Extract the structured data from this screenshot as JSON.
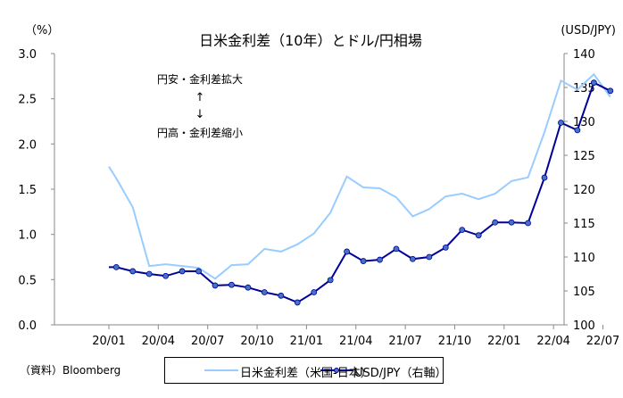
{
  "chart_data": {
    "type": "line",
    "title": "日米金利差（10年）とドル/円相場",
    "left_unit": "（%）",
    "right_unit": "(USD/JPY)",
    "source": "（資料）Bloomberg",
    "annotation_up": "円安・金利差拡大",
    "annotation_down": "円高・金利差縮小",
    "arrow_up": "↑",
    "arrow_down": "↓",
    "x_unit": "months since 2020/01",
    "x_ticks": [
      {
        "x": 0,
        "label": "20/01"
      },
      {
        "x": 3,
        "label": "20/04"
      },
      {
        "x": 6,
        "label": "20/07"
      },
      {
        "x": 9,
        "label": "20/10"
      },
      {
        "x": 12,
        "label": "21/01"
      },
      {
        "x": 15,
        "label": "21/04"
      },
      {
        "x": 18,
        "label": "21/07"
      },
      {
        "x": 21,
        "label": "21/10"
      },
      {
        "x": 24,
        "label": "22/01"
      },
      {
        "x": 27,
        "label": "22/04"
      },
      {
        "x": 30,
        "label": "22/07"
      }
    ],
    "xlim": [
      0,
      31.1
    ],
    "ylim_left": [
      0,
      3.0
    ],
    "yticks_left": [
      "0.0",
      "0.5",
      "1.0",
      "1.5",
      "2.0",
      "2.5",
      "3.0"
    ],
    "ylim_right": [
      100,
      140
    ],
    "yticks_right": [
      "100",
      "105",
      "110",
      "115",
      "120",
      "125",
      "130",
      "135",
      "140"
    ],
    "series": [
      {
        "name": "日米金利差（米国-日本）",
        "axis": "left",
        "color": "#99ccff",
        "x": [
          0,
          0.45,
          1.45,
          2.45,
          3.45,
          4.45,
          5.45,
          6.45,
          7.45,
          8.45,
          9.45,
          10.45,
          11.45,
          12.45,
          13.45,
          14.45,
          15.45,
          16.45,
          17.45,
          18.45,
          19.45,
          20.45,
          21.45,
          22.45,
          23.45,
          24.45,
          25.45,
          26.45,
          27.45,
          28.45,
          29.45,
          30.45
        ],
        "values": [
          1.75,
          1.62,
          1.3,
          0.65,
          0.67,
          0.65,
          0.63,
          0.51,
          0.66,
          0.67,
          0.84,
          0.81,
          0.89,
          1.01,
          1.24,
          1.64,
          1.52,
          1.51,
          1.41,
          1.2,
          1.28,
          1.42,
          1.45,
          1.39,
          1.45,
          1.59,
          1.63,
          2.13,
          2.7,
          2.6,
          2.77,
          2.52
        ]
      },
      {
        "name": "USD/JPY（右軸）",
        "axis": "right",
        "color": "#000099",
        "marker_color": "#4472c4",
        "x": [
          0,
          0.45,
          1.45,
          2.45,
          3.45,
          4.45,
          5.45,
          6.45,
          7.45,
          8.45,
          9.45,
          10.45,
          11.45,
          12.45,
          13.45,
          14.45,
          15.45,
          16.45,
          17.45,
          18.45,
          19.45,
          20.45,
          21.45,
          22.45,
          23.45,
          24.45,
          25.45,
          26.45,
          27.45,
          28.45,
          29.45,
          30.45
        ],
        "markers_from": 1,
        "values": [
          108.5,
          108.5,
          107.9,
          107.5,
          107.2,
          107.9,
          107.9,
          105.8,
          105.9,
          105.5,
          104.8,
          104.3,
          103.3,
          104.8,
          106.6,
          110.8,
          109.4,
          109.6,
          111.2,
          109.7,
          110.0,
          111.4,
          114.0,
          113.2,
          115.1,
          115.1,
          115.0,
          121.7,
          129.8,
          128.7,
          135.7,
          134.5
        ]
      }
    ]
  }
}
